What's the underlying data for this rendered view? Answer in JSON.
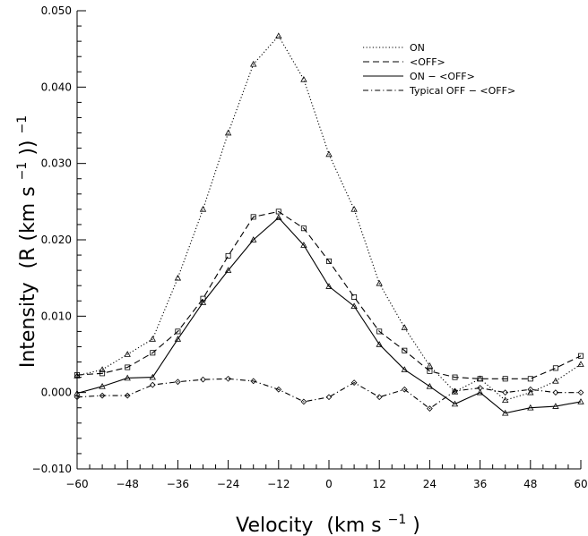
{
  "chart_data": {
    "type": "line",
    "xlabel_main": "Velocity",
    "xlabel_unit": "(km s",
    "xlabel_exp": "−1",
    "xlabel_close": ")",
    "ylabel_main": "Intensity",
    "ylabel_unit": "(R (km s",
    "ylabel_exp1": "−1",
    "ylabel_mid": "))",
    "ylabel_exp2": "−1",
    "xlim": [
      -60,
      60
    ],
    "ylim": [
      -0.01,
      0.05
    ],
    "xticks": [
      -60,
      -48,
      -36,
      -24,
      -12,
      0,
      12,
      24,
      36,
      48,
      60
    ],
    "yticks": [
      -0.01,
      0.0,
      0.01,
      0.02,
      0.03,
      0.04,
      0.05
    ],
    "ytick_labels": [
      "−0.010",
      "0.000",
      "0.010",
      "0.020",
      "0.030",
      "0.040",
      "0.050"
    ],
    "xtick_labels": [
      "−60",
      "−48",
      "−36",
      "−24",
      "−12",
      "0",
      "12",
      "24",
      "36",
      "48",
      "60"
    ],
    "legend_position": "top-right",
    "x": [
      -60,
      -54,
      -48,
      -42,
      -36,
      -30,
      -24,
      -18,
      -12,
      -6,
      0,
      6,
      12,
      18,
      24,
      30,
      36,
      42,
      48,
      54,
      60
    ],
    "series": [
      {
        "name": "ON",
        "style": "dotted",
        "marker": "triangle",
        "values": [
          0.0022,
          0.003,
          0.005,
          0.007,
          0.015,
          0.024,
          0.034,
          0.043,
          0.0467,
          0.041,
          0.0312,
          0.024,
          0.0143,
          0.0085,
          0.0035,
          0.0001,
          0.0018,
          -0.001,
          0.0,
          0.0015,
          0.0037
        ]
      },
      {
        "name": "<OFF>",
        "style": "dashed",
        "marker": "square",
        "values": [
          0.0023,
          0.0025,
          0.0033,
          0.0052,
          0.008,
          0.0123,
          0.0179,
          0.023,
          0.0237,
          0.0215,
          0.0172,
          0.0125,
          0.008,
          0.0055,
          0.0028,
          0.002,
          0.0018,
          0.0018,
          0.0018,
          0.0032,
          0.0048
        ]
      },
      {
        "name": "ON − <OFF>",
        "style": "solid",
        "marker": "triangle",
        "values": [
          -0.0001,
          0.0008,
          0.0019,
          0.002,
          0.007,
          0.0118,
          0.016,
          0.02,
          0.0229,
          0.0193,
          0.0139,
          0.0113,
          0.0063,
          0.003,
          0.0008,
          -0.0015,
          0.0,
          -0.0027,
          -0.002,
          -0.0018,
          -0.0012
        ]
      },
      {
        "name": "Typical OFF − <OFF>",
        "style": "dashdot",
        "marker": "diamond",
        "values": [
          -0.0006,
          -0.0004,
          -0.0004,
          0.001,
          0.0014,
          0.0017,
          0.0018,
          0.0015,
          0.0004,
          -0.0012,
          -0.0006,
          0.0013,
          -0.0006,
          0.0004,
          -0.0021,
          0.0002,
          0.0006,
          0.0,
          0.0004,
          0.0,
          0.0
        ]
      }
    ]
  }
}
